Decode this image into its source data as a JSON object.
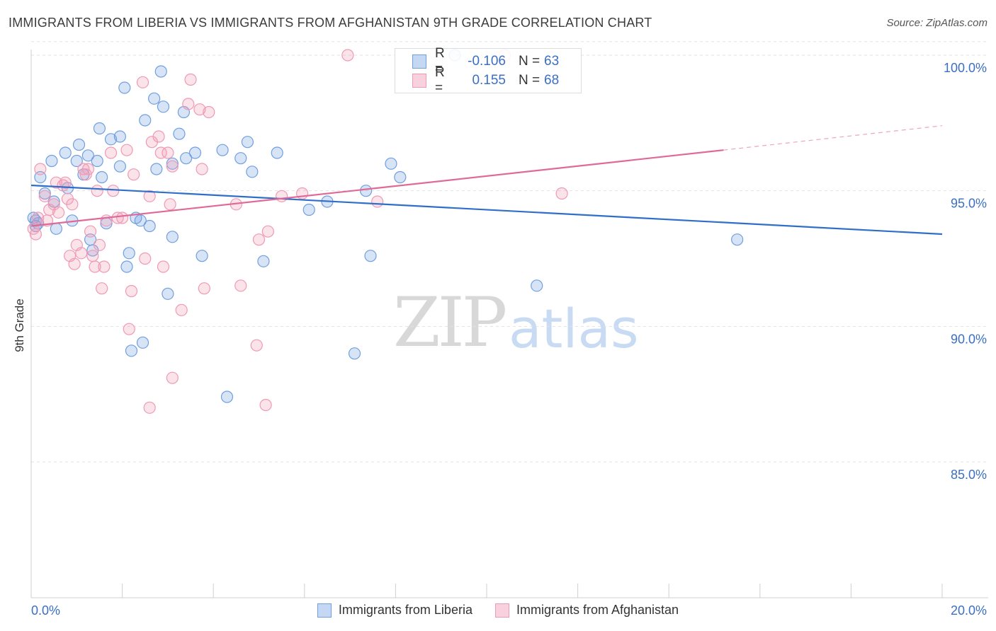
{
  "title": "IMMIGRANTS FROM LIBERIA VS IMMIGRANTS FROM AFGHANISTAN 9TH GRADE CORRELATION CHART",
  "source": "Source: ZipAtlas.com",
  "watermark": {
    "zip": "ZIP",
    "atlas": "atlas"
  },
  "legend": {
    "r_label": "R =",
    "n_label": "N =",
    "liberia": {
      "r": "-0.106",
      "n": "63"
    },
    "afghanistan": {
      "r": "0.155",
      "n": "68"
    }
  },
  "chart_data": {
    "type": "scatter",
    "title": "IMMIGRANTS FROM LIBERIA VS IMMIGRANTS FROM AFGHANISTAN 9TH GRADE CORRELATION CHART",
    "xlabel": "",
    "ylabel": "9th Grade",
    "xlim": [
      0,
      20
    ],
    "ylim": [
      80.5,
      100.5
    ],
    "x_tick_labels": [
      "0.0%",
      "20.0%"
    ],
    "y_ticks": [
      85,
      90,
      95,
      100
    ],
    "y_tick_labels": [
      "85.0%",
      "90.0%",
      "95.0%",
      "100.0%"
    ],
    "grid": true,
    "legend_position": "top-center",
    "colors": {
      "liberia": "#6f9fe0",
      "afghanistan": "#f099b5",
      "liberia_line": "#2f6fc9",
      "afghanistan_line": "#e06a97"
    },
    "series": [
      {
        "name": "Immigrants from Liberia",
        "r": -0.106,
        "n": 63,
        "trend": {
          "x": [
            0.0,
            20.0
          ],
          "y": [
            95.2,
            93.4
          ]
        },
        "points": [
          [
            0.05,
            94.0
          ],
          [
            0.1,
            93.7
          ],
          [
            0.1,
            93.9
          ],
          [
            0.2,
            95.5
          ],
          [
            0.3,
            94.9
          ],
          [
            0.45,
            96.1
          ],
          [
            0.55,
            93.6
          ],
          [
            0.5,
            94.6
          ],
          [
            0.75,
            96.4
          ],
          [
            0.8,
            95.1
          ],
          [
            0.9,
            93.9
          ],
          [
            1.0,
            96.1
          ],
          [
            1.05,
            96.7
          ],
          [
            1.15,
            95.6
          ],
          [
            1.25,
            96.3
          ],
          [
            1.3,
            93.2
          ],
          [
            1.35,
            92.8
          ],
          [
            1.45,
            96.1
          ],
          [
            1.5,
            97.3
          ],
          [
            1.55,
            95.5
          ],
          [
            1.65,
            93.8
          ],
          [
            1.75,
            96.9
          ],
          [
            1.95,
            97.0
          ],
          [
            1.95,
            95.9
          ],
          [
            2.05,
            98.8
          ],
          [
            2.1,
            92.2
          ],
          [
            2.15,
            92.7
          ],
          [
            2.2,
            89.1
          ],
          [
            2.3,
            94.0
          ],
          [
            2.4,
            93.9
          ],
          [
            2.45,
            89.4
          ],
          [
            2.5,
            97.6
          ],
          [
            2.6,
            93.7
          ],
          [
            2.7,
            98.4
          ],
          [
            2.75,
            95.8
          ],
          [
            2.85,
            99.4
          ],
          [
            2.9,
            98.1
          ],
          [
            3.0,
            91.2
          ],
          [
            3.1,
            93.3
          ],
          [
            3.1,
            96.0
          ],
          [
            3.25,
            97.1
          ],
          [
            3.35,
            97.9
          ],
          [
            3.4,
            96.2
          ],
          [
            3.6,
            96.4
          ],
          [
            3.75,
            92.6
          ],
          [
            4.2,
            96.5
          ],
          [
            4.3,
            87.4
          ],
          [
            4.6,
            96.2
          ],
          [
            4.75,
            96.8
          ],
          [
            4.85,
            95.7
          ],
          [
            5.1,
            92.4
          ],
          [
            5.4,
            96.4
          ],
          [
            6.1,
            94.3
          ],
          [
            6.5,
            94.6
          ],
          [
            7.1,
            89.0
          ],
          [
            7.35,
            95.0
          ],
          [
            7.45,
            92.6
          ],
          [
            7.9,
            96.0
          ],
          [
            8.1,
            95.5
          ],
          [
            9.3,
            100.0
          ],
          [
            11.1,
            91.5
          ],
          [
            15.5,
            93.2
          ],
          [
            0.15,
            93.8
          ]
        ]
      },
      {
        "name": "Immigrants from Afghanistan",
        "r": 0.155,
        "n": 68,
        "trend": {
          "x": [
            0.0,
            15.2
          ],
          "y": [
            93.7,
            96.5
          ]
        },
        "trend_dashed": {
          "x": [
            15.2,
            20.0
          ],
          "y": [
            96.5,
            97.4
          ]
        },
        "points": [
          [
            0.05,
            93.6
          ],
          [
            0.1,
            93.4
          ],
          [
            0.15,
            94.0
          ],
          [
            0.2,
            95.8
          ],
          [
            0.3,
            94.8
          ],
          [
            0.35,
            93.9
          ],
          [
            0.4,
            94.3
          ],
          [
            0.5,
            94.5
          ],
          [
            0.55,
            95.3
          ],
          [
            0.6,
            94.2
          ],
          [
            0.7,
            95.2
          ],
          [
            0.75,
            95.3
          ],
          [
            0.8,
            94.7
          ],
          [
            0.85,
            92.6
          ],
          [
            0.9,
            94.5
          ],
          [
            0.95,
            92.3
          ],
          [
            1.0,
            93.0
          ],
          [
            1.1,
            92.7
          ],
          [
            1.15,
            95.8
          ],
          [
            1.2,
            95.6
          ],
          [
            1.3,
            93.5
          ],
          [
            1.35,
            92.6
          ],
          [
            1.4,
            92.2
          ],
          [
            1.45,
            95.0
          ],
          [
            1.5,
            93.0
          ],
          [
            1.55,
            91.4
          ],
          [
            1.6,
            92.2
          ],
          [
            1.65,
            93.9
          ],
          [
            1.75,
            96.4
          ],
          [
            1.8,
            95.0
          ],
          [
            1.9,
            94.0
          ],
          [
            2.0,
            94.0
          ],
          [
            2.1,
            96.5
          ],
          [
            2.15,
            89.9
          ],
          [
            2.2,
            91.3
          ],
          [
            2.25,
            95.6
          ],
          [
            2.45,
            99.0
          ],
          [
            2.5,
            92.5
          ],
          [
            2.6,
            94.8
          ],
          [
            2.65,
            96.8
          ],
          [
            2.6,
            87.0
          ],
          [
            2.8,
            97.0
          ],
          [
            2.85,
            96.4
          ],
          [
            2.9,
            92.2
          ],
          [
            3.0,
            96.4
          ],
          [
            3.05,
            94.5
          ],
          [
            3.1,
            95.9
          ],
          [
            3.1,
            88.1
          ],
          [
            3.3,
            90.6
          ],
          [
            3.45,
            98.2
          ],
          [
            3.5,
            99.1
          ],
          [
            3.7,
            98.0
          ],
          [
            3.75,
            95.8
          ],
          [
            3.8,
            91.4
          ],
          [
            3.9,
            97.9
          ],
          [
            4.5,
            94.5
          ],
          [
            4.6,
            91.5
          ],
          [
            4.95,
            89.3
          ],
          [
            5.0,
            93.2
          ],
          [
            5.2,
            93.5
          ],
          [
            5.15,
            87.1
          ],
          [
            5.5,
            94.8
          ],
          [
            5.95,
            94.9
          ],
          [
            6.95,
            100.0
          ],
          [
            7.6,
            94.6
          ],
          [
            10.4,
            100.0
          ],
          [
            11.65,
            94.9
          ],
          [
            1.25,
            95.8
          ]
        ]
      }
    ]
  },
  "bottom_legend": {
    "liberia": "Immigrants from Liberia",
    "afghanistan": "Immigrants from Afghanistan"
  }
}
